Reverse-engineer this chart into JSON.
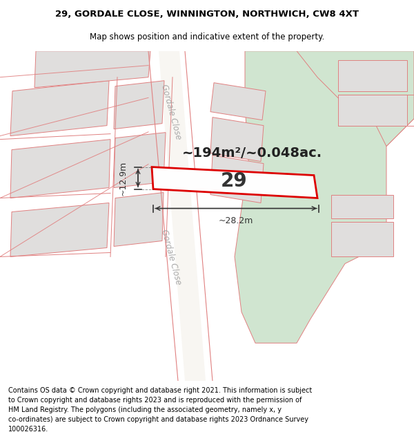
{
  "title_line1": "29, GORDALE CLOSE, WINNINGTON, NORTHWICH, CW8 4XT",
  "title_line2": "Map shows position and indicative extent of the property.",
  "footer_text": "Contains OS data © Crown copyright and database right 2021. This information is subject to Crown copyright and database rights 2023 and is reproduced with the permission of HM Land Registry. The polygons (including the associated geometry, namely x, y co-ordinates) are subject to Crown copyright and database rights 2023 Ordnance Survey 100026316.",
  "area_text": "~194m²/~0.048ac.",
  "label_29": "29",
  "dim_width": "~28.2m",
  "dim_height": "~12.9m",
  "bg_color": "#f0eeea",
  "road_bg": "#ffffff",
  "building_color": "#e0dedd",
  "building_edge": "#d0a0a0",
  "green_color": "#d0e5d0",
  "plot_fill": "#ffffff",
  "plot_edge": "#dd0000",
  "red_line": "#e08080",
  "title_fontsize": 9.5,
  "subtitle_fontsize": 8.5,
  "footer_fontsize": 7.0,
  "map_xlim": [
    0,
    600
  ],
  "map_ylim": [
    0,
    478
  ],
  "road_label_color": "#aaaaaa",
  "road_label_size": 9,
  "dim_color": "#333333",
  "area_fontsize": 14
}
